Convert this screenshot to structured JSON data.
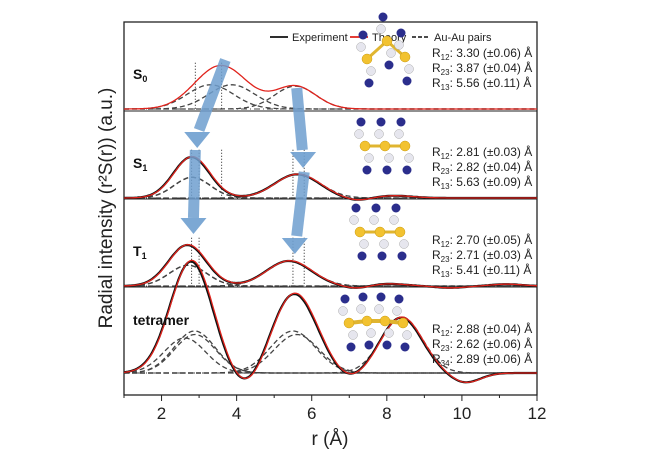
{
  "chart_data": {
    "type": "line",
    "xlabel": "r (Å)",
    "ylabel": "Radial intensity (r²S(r)) (a.u.)",
    "xlim": [
      1,
      12
    ],
    "xticks": [
      "2",
      "4",
      "6",
      "8",
      "10",
      "12"
    ],
    "legend": {
      "placement": "top-right",
      "entries": [
        {
          "name": "Experiment",
          "color": "#111111",
          "style": "solid"
        },
        {
          "name": "Theory",
          "color": "#e0231c",
          "style": "solid"
        },
        {
          "name": "Au-Au pairs",
          "color": "#333333",
          "style": "dashed"
        }
      ]
    },
    "panels": [
      {
        "label": "S",
        "sub": "0",
        "distances": [
          {
            "name": "R",
            "sub": "12",
            "text": ": 3.30 (±0.06) Å"
          },
          {
            "name": "R",
            "sub": "23",
            "text": ": 3.87 (±0.04) Å"
          },
          {
            "name": "R",
            "sub": "13",
            "text": ": 5.56 (±0.11) Å"
          }
        ],
        "pairs": [
          {
            "r": 3.3,
            "a": 0.55,
            "s": 0.62
          },
          {
            "r": 3.87,
            "a": 0.55,
            "s": 0.62
          },
          {
            "r": 5.56,
            "a": 0.52,
            "s": 0.55
          }
        ],
        "dotted_r": [
          2.9,
          3.6
        ]
      },
      {
        "label": "S",
        "sub": "1",
        "distances": [
          {
            "name": "R",
            "sub": "12",
            "text": ": 2.81 (±0.03) Å"
          },
          {
            "name": "R",
            "sub": "23",
            "text": ": 2.82 (±0.04) Å"
          },
          {
            "name": "R",
            "sub": "13",
            "text": ": 5.63 (±0.09) Å"
          }
        ],
        "pairs": [
          {
            "r": 2.81,
            "a": 0.45,
            "s": 0.48
          },
          {
            "r": 2.82,
            "a": 0.45,
            "s": 0.48
          },
          {
            "r": 5.63,
            "a": 0.52,
            "s": 0.6
          }
        ],
        "dotted_r": [
          2.8,
          3.0,
          3.6,
          5.5,
          5.8
        ]
      },
      {
        "label": "T",
        "sub": "1",
        "distances": [
          {
            "name": "R",
            "sub": "12",
            "text": ": 2.70 (±0.05) Å"
          },
          {
            "name": "R",
            "sub": "23",
            "text": ": 2.71 (±0.03) Å"
          },
          {
            "name": "R",
            "sub": "13",
            "text": ": 5.41 (±0.11) Å"
          }
        ],
        "pairs": [
          {
            "r": 2.7,
            "a": 0.45,
            "s": 0.5
          },
          {
            "r": 2.71,
            "a": 0.45,
            "s": 0.5
          },
          {
            "r": 5.41,
            "a": 0.55,
            "s": 0.6
          }
        ],
        "dotted_r": [
          2.8,
          3.0,
          5.5,
          5.8
        ]
      },
      {
        "label": "tetramer",
        "sub": "",
        "distances": [
          {
            "name": "R",
            "sub": "12",
            "text": ": 2.88 (±0.04) Å"
          },
          {
            "name": "R",
            "sub": "23",
            "text": ": 2.62 (±0.06) Å"
          },
          {
            "name": "R",
            "sub": "34",
            "text": ": 2.89 (±0.06) Å"
          }
        ],
        "pairs": [
          {
            "r": 2.88,
            "a": 0.6,
            "s": 0.55
          },
          {
            "r": 2.62,
            "a": 0.5,
            "s": 0.55
          },
          {
            "r": 2.89,
            "a": 0.55,
            "s": 0.55
          },
          {
            "r": 5.5,
            "a": 0.6,
            "s": 0.6
          },
          {
            "r": 5.6,
            "a": 0.55,
            "s": 0.6
          },
          {
            "r": 8.4,
            "a": 0.8,
            "s": 0.55
          }
        ],
        "dotted_r": []
      }
    ]
  }
}
